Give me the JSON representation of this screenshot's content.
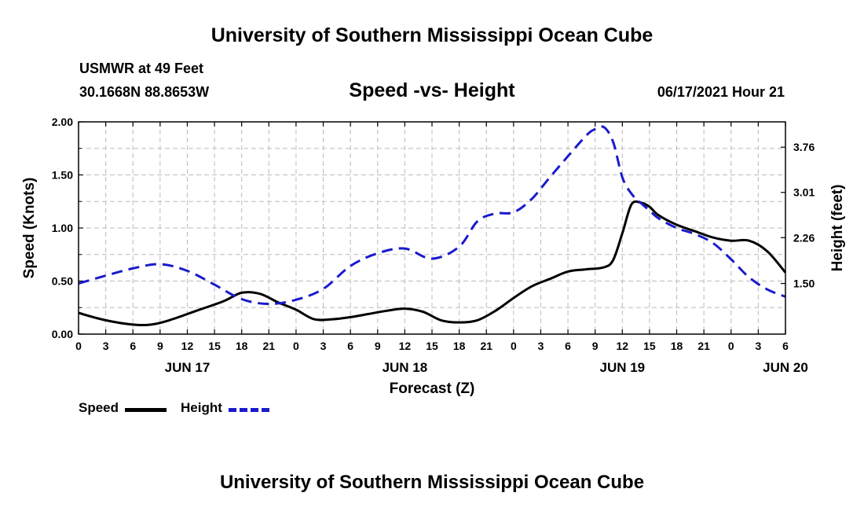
{
  "header": {
    "top_title": "University of Southern Mississippi Ocean Cube",
    "station": "USMWR at 49 Feet",
    "coords": "30.1668N  88.8653W",
    "timestamp": "06/17/2021 Hour 21",
    "bottom_title": "University of Southern Mississippi Ocean Cube"
  },
  "colors": {
    "speed": "#000000",
    "height": "#1a1acc",
    "grid": "#bbbbbb"
  },
  "chart_data": {
    "type": "line",
    "title": "Speed -vs- Height",
    "xlabel": "Forecast (Z)",
    "ylabel": "Speed (Knots)",
    "y2label": "Height (feet)",
    "x_range_hours": [
      0,
      78
    ],
    "ylim": [
      0,
      2.0
    ],
    "y2lim": [
      0.66,
      4.18
    ],
    "y_ticks": [
      "0.00",
      "0.50",
      "1.00",
      "1.50",
      "2.00"
    ],
    "y2_ticks": [
      "1.50",
      "2.26",
      "3.01",
      "3.76"
    ],
    "x_tick_labels": [
      "0",
      "3",
      "6",
      "9",
      "12",
      "15",
      "18",
      "21",
      "0",
      "3",
      "6",
      "9",
      "12",
      "15",
      "18",
      "21",
      "0",
      "3",
      "6",
      "9",
      "12",
      "15",
      "18",
      "21",
      "0",
      "3",
      "6"
    ],
    "day_labels": [
      {
        "label": "JUN 17",
        "hour": 12
      },
      {
        "label": "JUN 18",
        "hour": 36
      },
      {
        "label": "JUN 19",
        "hour": 60
      },
      {
        "label": "JUN 20",
        "hour": 78
      }
    ],
    "legend": [
      "Speed",
      "Height"
    ],
    "series": [
      {
        "name": "Speed",
        "axis": "left",
        "style": "solid",
        "x": [
          0,
          3,
          6,
          8,
          10,
          13,
          16,
          18,
          20,
          22,
          24,
          26,
          28,
          30,
          32,
          34,
          36,
          38,
          40,
          42,
          44,
          46,
          48,
          50,
          52,
          54,
          56,
          58,
          59,
          60,
          61,
          62,
          63,
          64,
          66,
          68,
          70,
          72,
          74,
          76,
          78
        ],
        "values": [
          0.2,
          0.13,
          0.09,
          0.09,
          0.13,
          0.22,
          0.31,
          0.39,
          0.38,
          0.3,
          0.23,
          0.14,
          0.14,
          0.16,
          0.19,
          0.22,
          0.24,
          0.21,
          0.13,
          0.11,
          0.13,
          0.22,
          0.34,
          0.45,
          0.52,
          0.59,
          0.61,
          0.63,
          0.7,
          0.95,
          1.22,
          1.24,
          1.2,
          1.12,
          1.03,
          0.97,
          0.91,
          0.88,
          0.88,
          0.78,
          0.58
        ]
      },
      {
        "name": "Height",
        "axis": "right",
        "style": "dashed",
        "x": [
          0,
          3,
          6,
          9,
          12,
          15,
          18,
          21,
          24,
          27,
          30,
          33,
          36,
          39,
          42,
          44,
          46,
          48,
          50,
          52,
          54,
          56,
          57,
          58,
          59,
          60,
          61,
          62,
          63,
          64,
          66,
          68,
          70,
          72,
          74,
          76,
          78
        ],
        "values": [
          1.5,
          1.63,
          1.75,
          1.82,
          1.71,
          1.48,
          1.24,
          1.16,
          1.23,
          1.41,
          1.79,
          2.0,
          2.08,
          1.91,
          2.11,
          2.53,
          2.66,
          2.68,
          2.9,
          3.26,
          3.61,
          3.95,
          4.06,
          4.09,
          3.84,
          3.26,
          2.99,
          2.84,
          2.71,
          2.58,
          2.42,
          2.32,
          2.17,
          1.9,
          1.6,
          1.4,
          1.28
        ]
      }
    ]
  }
}
